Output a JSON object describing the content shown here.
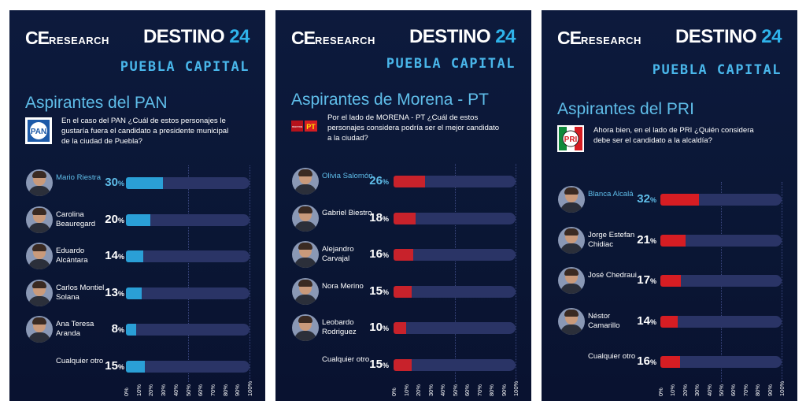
{
  "brand": {
    "ce": "CE",
    "research": "RESEARCH",
    "destino": "DESTINO",
    "destino_num": "24"
  },
  "colors": {
    "pan_bar": "#2a9fd6",
    "morena_bar": "#c8222b",
    "pri_bar": "#d61d23",
    "track": "#2a3466",
    "accent": "#49b6ea"
  },
  "panels": [
    {
      "subtitle": "PUEBLA CAPITAL",
      "heading": "Aspirantes del PAN",
      "party_icon": "pan-logo-icon",
      "question": "En el caso del PAN ¿Cuál de estos personajes le gustaría fuera el candidato a presidente municipal de la ciudad de Puebla?"
    },
    {
      "subtitle": "PUEBLA CAPITAL",
      "heading": "Aspirantes de Morena - PT",
      "party_icon": "morena-pt-logo-icon",
      "question": "Por el lado de MORENA - PT ¿Cuál de estos personajes considera podría ser el mejor candidato a la ciudad?"
    },
    {
      "subtitle": "PUEBLA CAPITAL",
      "heading": "Aspirantes del PRI",
      "party_icon": "pri-logo-icon",
      "question": "Ahora bien, en el lado de PRI ¿Quién considera debe ser el candidato a la alcaldía?"
    }
  ],
  "chart_data": [
    {
      "type": "bar",
      "categories": [
        "Mario Riestra",
        "Carolina Beauregard",
        "Eduardo Alcántara",
        "Carlos Montiel Solana",
        "Ana Teresa Aranda",
        "Cualquier otro"
      ],
      "values": [
        30,
        20,
        14,
        13,
        8,
        15
      ],
      "value_labels": [
        "30",
        "20",
        "14",
        "13",
        "8",
        "15"
      ],
      "unit": "%",
      "xlim": [
        0,
        100
      ],
      "tick_labels": [
        "0%",
        "10%",
        "20%",
        "30%",
        "40%",
        "50%",
        "60%",
        "70%",
        "80%",
        "90%",
        "100%"
      ],
      "bar_color": "#2a9fd6",
      "grid": true
    },
    {
      "type": "bar",
      "categories": [
        "Olivia Salomón",
        "Gabriel Biestro",
        "Alejandro Carvajal",
        "Nora Merino",
        "Leobardo Rodriguez",
        "Cualquier otro"
      ],
      "values": [
        26,
        18,
        16,
        15,
        10,
        15
      ],
      "value_labels": [
        "26",
        "18",
        "16",
        "15",
        "10",
        "15"
      ],
      "unit": "%",
      "xlim": [
        0,
        100
      ],
      "tick_labels": [
        "0%",
        "10%",
        "20%",
        "30%",
        "40%",
        "50%",
        "60%",
        "70%",
        "80%",
        "90%",
        "100%"
      ],
      "bar_color": "#c8222b",
      "grid": true
    },
    {
      "type": "bar",
      "categories": [
        "Blanca Alcalá",
        "Jorge Estefan Chidiac",
        "José Chedraui",
        "Néstor Camarillo",
        "Cualquier otro"
      ],
      "values": [
        32,
        21,
        17,
        14,
        16
      ],
      "value_labels": [
        "32",
        "21",
        "17",
        "14",
        "16"
      ],
      "unit": "%",
      "xlim": [
        0,
        100
      ],
      "tick_labels": [
        "0%",
        "10%",
        "20%",
        "30%",
        "40%",
        "50%",
        "60%",
        "70%",
        "80%",
        "90%",
        "100%"
      ],
      "bar_color": "#d61d23",
      "grid": true
    }
  ]
}
